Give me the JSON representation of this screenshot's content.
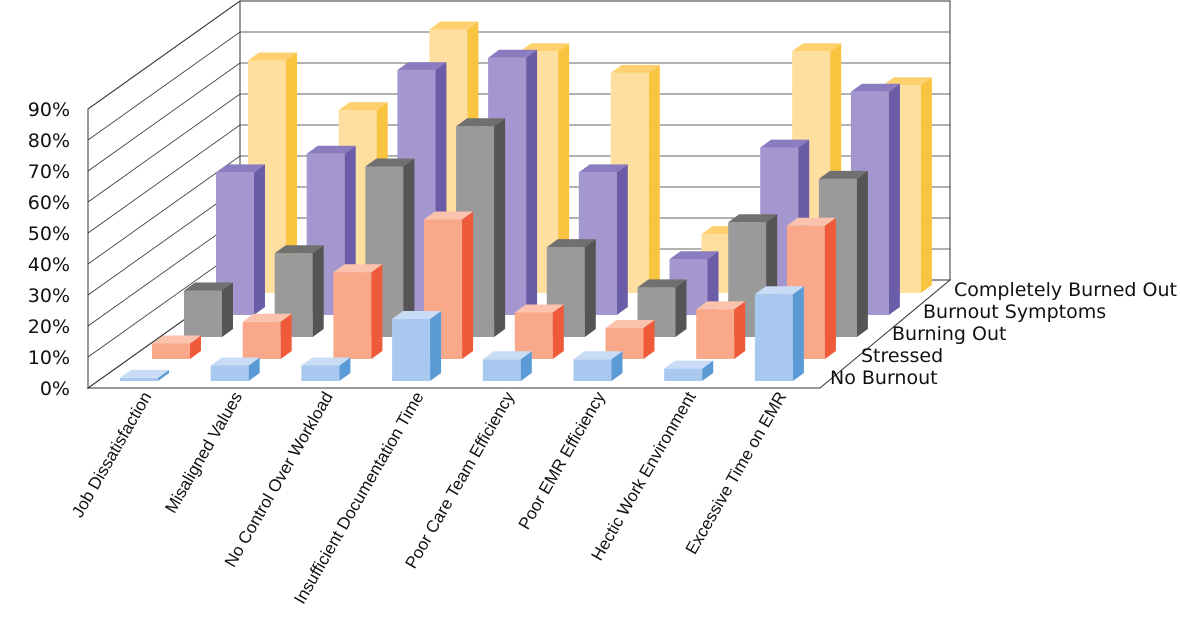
{
  "chart_data": {
    "type": "bar",
    "subtype": "3d-grouped",
    "title": "",
    "xlabel": "",
    "ylabel": "",
    "ylim": [
      0,
      90
    ],
    "yticks": [
      "0%",
      "10%",
      "20%",
      "30%",
      "40%",
      "50%",
      "60%",
      "70%",
      "80%",
      "90%"
    ],
    "grid": true,
    "categories": [
      "Job Dissatisfaction",
      "Misaligned Values",
      "No Control Over Workload",
      "Insufficient Documentation Time",
      "Poor Care Team Efficiency",
      "Poor EMR Efficiency",
      "Hectic Work Environment",
      "Excessive Time on EMR"
    ],
    "series": [
      {
        "name": "No Burnout",
        "values": [
          1,
          5,
          5,
          20,
          7,
          7,
          4,
          28
        ],
        "face": "#a9c8f0",
        "side": "#5b9bd5",
        "top": "#c9dcf5"
      },
      {
        "name": "Stressed",
        "values": [
          5,
          12,
          28,
          45,
          15,
          10,
          16,
          43
        ],
        "face": "#f9a88a",
        "side": "#ef5a3a",
        "top": "#fbc3ad"
      },
      {
        "name": "Burning Out",
        "values": [
          15,
          27,
          55,
          68,
          29,
          16,
          37,
          51
        ],
        "face": "#9a9a9a",
        "side": "#555555",
        "top": "#707070"
      },
      {
        "name": "Burnout Symptoms",
        "values": [
          46,
          52,
          79,
          83,
          46,
          18,
          54,
          72
        ],
        "face": "#a497cf",
        "side": "#6b5ca8",
        "top": "#8a7cbf"
      },
      {
        "name": "Completely Burned Out",
        "values": [
          75,
          59,
          85,
          78,
          71,
          19,
          78,
          67
        ],
        "face": "#ffdfa0",
        "side": "#f9c440",
        "top": "#ffd070"
      }
    ],
    "legend_position": "right, along depth axis"
  }
}
